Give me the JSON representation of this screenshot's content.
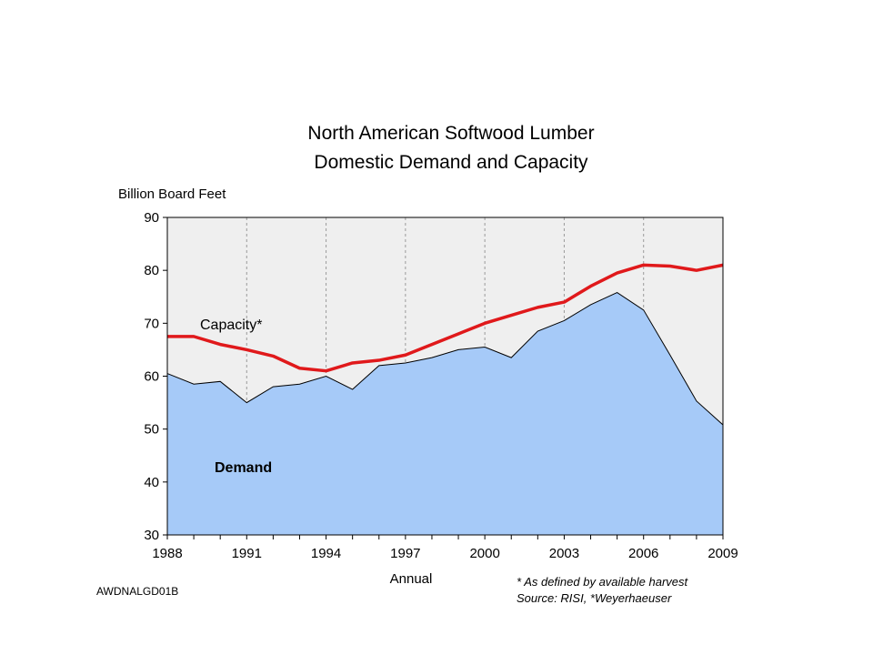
{
  "chart_data": {
    "type": "area",
    "title_lines": [
      "North American Softwood Lumber",
      "Domestic Demand and Capacity"
    ],
    "ylabel": "Billion Board Feet",
    "xlabel": "Annual",
    "ylim": [
      30,
      90
    ],
    "yticks": [
      30,
      40,
      50,
      60,
      70,
      80,
      90
    ],
    "xlim": [
      1988,
      2009
    ],
    "xticks": [
      1988,
      1991,
      1994,
      1997,
      2000,
      2003,
      2006,
      2009
    ],
    "grid": "vertical dashed",
    "x": [
      1988,
      1989,
      1990,
      1991,
      1992,
      1993,
      1994,
      1995,
      1996,
      1997,
      1998,
      1999,
      2000,
      2001,
      2002,
      2003,
      2004,
      2005,
      2006,
      2007,
      2008,
      2009
    ],
    "series": [
      {
        "name": "Demand",
        "kind": "area",
        "color": "#a6caf8",
        "values": [
          60.5,
          58.5,
          59,
          55,
          58,
          58.5,
          60,
          57.5,
          62,
          62.5,
          63.5,
          65,
          65.5,
          63.5,
          68.5,
          70.5,
          73.5,
          75.8,
          72.5,
          64,
          55.3,
          50.8
        ]
      },
      {
        "name": "Capacity*",
        "kind": "line",
        "color": "#e0191b",
        "values": [
          67.5,
          67.5,
          66,
          65,
          63.8,
          61.5,
          61,
          62.5,
          63,
          64,
          66,
          68,
          70,
          71.5,
          73,
          74,
          77,
          79.5,
          81,
          80.8,
          80,
          81
        ]
      }
    ],
    "annotations": {
      "capacity_label": "Capacity*",
      "demand_label": "Demand",
      "footnote_1": "* As defined by available harvest",
      "footnote_2": "Source: RISI, *Weyerhaeuser",
      "code": "AWDNALGD01B"
    },
    "colors": {
      "plot_background": "#efefef",
      "demand_fill": "#a6caf8",
      "capacity_line": "#e0191b",
      "grid": "#9a9a9a"
    }
  }
}
